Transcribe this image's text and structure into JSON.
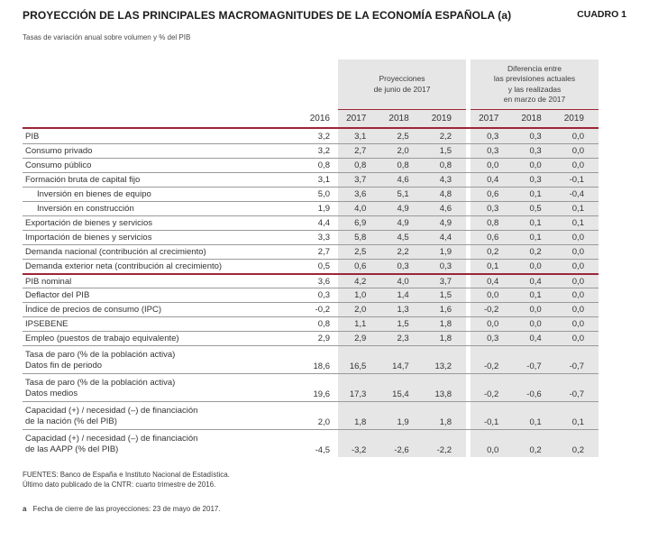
{
  "title": "PROYECCIÓN DE LAS PRINCIPALES MACROMAGNITUDES DE LA ECONOMÍA ESPAÑOLA (a)",
  "table_label": "CUADRO 1",
  "subtitle": "Tasas de variación anual sobre volumen y % del PIB",
  "colors": {
    "accent_red": "#9C2638",
    "block_gray": "#E6E6E6",
    "sep_gray": "#9A9A9A",
    "text": "#333333"
  },
  "table": {
    "group_headers": {
      "projections": [
        "Proyecciones",
        "de junio de 2017"
      ],
      "difference": [
        "Diferencia entre",
        "las previsiones actuales",
        "y las realizadas",
        "en marzo de 2017"
      ]
    },
    "year_headers": {
      "base": "2016",
      "projection_years": [
        "2017",
        "2018",
        "2019"
      ],
      "difference_years": [
        "2017",
        "2018",
        "2019"
      ]
    },
    "rows": [
      {
        "lines": [
          "PIB"
        ],
        "indent": false,
        "red_top": false,
        "v2016": "3,2",
        "proj": [
          "3,1",
          "2,5",
          "2,2"
        ],
        "diff": [
          "0,3",
          "0,3",
          "0,0"
        ]
      },
      {
        "lines": [
          "Consumo privado"
        ],
        "indent": false,
        "red_top": false,
        "v2016": "3,2",
        "proj": [
          "2,7",
          "2,0",
          "1,5"
        ],
        "diff": [
          "0,3",
          "0,3",
          "0,0"
        ]
      },
      {
        "lines": [
          "Consumo público"
        ],
        "indent": false,
        "red_top": false,
        "v2016": "0,8",
        "proj": [
          "0,8",
          "0,8",
          "0,8"
        ],
        "diff": [
          "0,0",
          "0,0",
          "0,0"
        ]
      },
      {
        "lines": [
          "Formación bruta de capital fijo"
        ],
        "indent": false,
        "red_top": false,
        "v2016": "3,1",
        "proj": [
          "3,7",
          "4,6",
          "4,3"
        ],
        "diff": [
          "0,4",
          "0,3",
          "-0,1"
        ]
      },
      {
        "lines": [
          "Inversión en bienes de equipo"
        ],
        "indent": true,
        "red_top": false,
        "v2016": "5,0",
        "proj": [
          "3,6",
          "5,1",
          "4,8"
        ],
        "diff": [
          "0,6",
          "0,1",
          "-0,4"
        ]
      },
      {
        "lines": [
          "Inversión en construcción"
        ],
        "indent": true,
        "red_top": false,
        "v2016": "1,9",
        "proj": [
          "4,0",
          "4,9",
          "4,6"
        ],
        "diff": [
          "0,3",
          "0,5",
          "0,1"
        ]
      },
      {
        "lines": [
          "Exportación de bienes y servicios"
        ],
        "indent": false,
        "red_top": false,
        "v2016": "4,4",
        "proj": [
          "6,9",
          "4,9",
          "4,9"
        ],
        "diff": [
          "0,8",
          "0,1",
          "0,1"
        ]
      },
      {
        "lines": [
          "Importación de bienes y servicios"
        ],
        "indent": false,
        "red_top": false,
        "v2016": "3,3",
        "proj": [
          "5,8",
          "4,5",
          "4,4"
        ],
        "diff": [
          "0,6",
          "0,1",
          "0,0"
        ]
      },
      {
        "lines": [
          "Demanda nacional (contribución al crecimiento)"
        ],
        "indent": false,
        "red_top": false,
        "v2016": "2,7",
        "proj": [
          "2,5",
          "2,2",
          "1,9"
        ],
        "diff": [
          "0,2",
          "0,2",
          "0,0"
        ]
      },
      {
        "lines": [
          "Demanda exterior neta (contribución al crecimiento)"
        ],
        "indent": false,
        "red_top": false,
        "v2016": "0,5",
        "proj": [
          "0,6",
          "0,3",
          "0,3"
        ],
        "diff": [
          "0,1",
          "0,0",
          "0,0"
        ]
      },
      {
        "lines": [
          "PIB nominal"
        ],
        "indent": false,
        "red_top": true,
        "v2016": "3,6",
        "proj": [
          "4,2",
          "4,0",
          "3,7"
        ],
        "diff": [
          "0,4",
          "0,4",
          "0,0"
        ]
      },
      {
        "lines": [
          "Deflactor del PIB"
        ],
        "indent": false,
        "red_top": false,
        "v2016": "0,3",
        "proj": [
          "1,0",
          "1,4",
          "1,5"
        ],
        "diff": [
          "0,0",
          "0,1",
          "0,0"
        ]
      },
      {
        "lines": [
          "Índice de precios de consumo (IPC)"
        ],
        "indent": false,
        "red_top": false,
        "v2016": "-0,2",
        "proj": [
          "2,0",
          "1,3",
          "1,6"
        ],
        "diff": [
          "-0,2",
          "0,0",
          "0,0"
        ]
      },
      {
        "lines": [
          "IPSEBENE"
        ],
        "indent": false,
        "red_top": false,
        "v2016": "0,8",
        "proj": [
          "1,1",
          "1,5",
          "1,8"
        ],
        "diff": [
          "0,0",
          "0,0",
          "0,0"
        ]
      },
      {
        "lines": [
          "Empleo (puestos de trabajo equivalente)"
        ],
        "indent": false,
        "red_top": false,
        "v2016": "2,9",
        "proj": [
          "2,9",
          "2,3",
          "1,8"
        ],
        "diff": [
          "0,3",
          "0,4",
          "0,0"
        ]
      },
      {
        "lines": [
          "Tasa de paro (% de la población activa)",
          "Datos fin de periodo"
        ],
        "indent": false,
        "red_top": false,
        "v2016": "18,6",
        "proj": [
          "16,5",
          "14,7",
          "13,2"
        ],
        "diff": [
          "-0,2",
          "-0,7",
          "-0,7"
        ]
      },
      {
        "lines": [
          "Tasa de paro (% de la población activa)",
          "Datos medios"
        ],
        "indent": false,
        "red_top": false,
        "v2016": "19,6",
        "proj": [
          "17,3",
          "15,4",
          "13,8"
        ],
        "diff": [
          "-0,2",
          "-0,6",
          "-0,7"
        ]
      },
      {
        "lines": [
          "Capacidad (+) / necesidad (–) de financiación",
          "de la nación (% del PIB)"
        ],
        "indent": false,
        "red_top": false,
        "v2016": "2,0",
        "proj": [
          "1,8",
          "1,9",
          "1,8"
        ],
        "diff": [
          "-0,1",
          "0,1",
          "0,1"
        ]
      },
      {
        "lines": [
          "Capacidad (+) / necesidad (–) de financiación",
          "de las AAPP (% del PIB)"
        ],
        "indent": false,
        "red_top": false,
        "v2016": "-4,5",
        "proj": [
          "-3,2",
          "-2,6",
          "-2,2"
        ],
        "diff": [
          "0,0",
          "0,2",
          "0,2"
        ]
      }
    ]
  },
  "footer": {
    "sources_line1": "FUENTES: Banco de España e Instituto Nacional de Estadística.",
    "sources_line2": "Último dato publicado de la CNTR: cuarto trimestre de 2016.",
    "footnote_marker": "a",
    "footnote_text": "Fecha de cierre de las proyecciones: 23 de mayo de 2017."
  }
}
